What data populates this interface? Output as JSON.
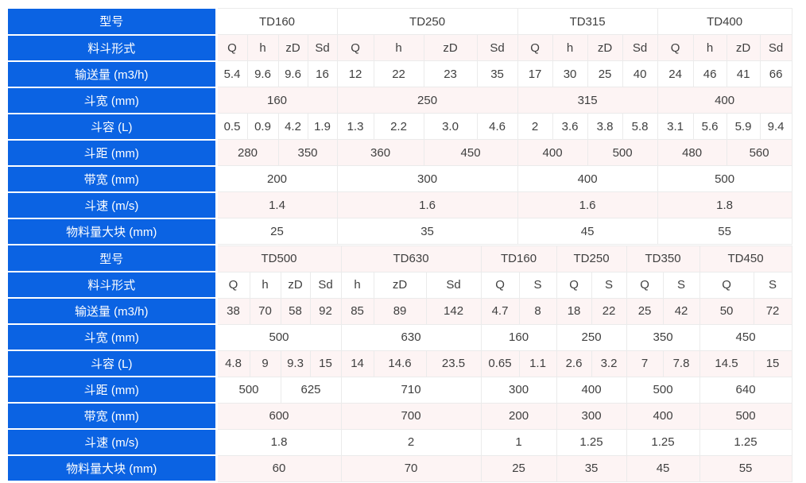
{
  "colors": {
    "header_blue": "#0b63e3",
    "header_text": "#ffffff",
    "row_pink": "#fdf4f4",
    "row_white": "#ffffff",
    "border_gray": "#ebebeb",
    "data_text": "#3f3f3f"
  },
  "table": {
    "sections": [
      {
        "rows": [
          {
            "label": "型号",
            "cells": [
              {
                "t": "TD160",
                "s": 4
              },
              {
                "t": "TD250",
                "s": 4
              },
              {
                "t": "TD315",
                "s": 4
              },
              {
                "t": "TD400",
                "s": 4
              }
            ]
          },
          {
            "label": "料斗形式",
            "cells": [
              {
                "t": "Q"
              },
              {
                "t": "h"
              },
              {
                "t": "zD"
              },
              {
                "t": "Sd"
              },
              {
                "t": "Q"
              },
              {
                "t": "h"
              },
              {
                "t": "zD"
              },
              {
                "t": "Sd"
              },
              {
                "t": "Q"
              },
              {
                "t": "h"
              },
              {
                "t": "zD"
              },
              {
                "t": "Sd"
              },
              {
                "t": "Q"
              },
              {
                "t": "h"
              },
              {
                "t": "zD"
              },
              {
                "t": "Sd"
              }
            ]
          },
          {
            "label": "输送量 (m3/h)",
            "cells": [
              {
                "t": "5.4"
              },
              {
                "t": "9.6"
              },
              {
                "t": "9.6"
              },
              {
                "t": "16"
              },
              {
                "t": "12"
              },
              {
                "t": "22"
              },
              {
                "t": "23"
              },
              {
                "t": "35"
              },
              {
                "t": "17"
              },
              {
                "t": "30"
              },
              {
                "t": "25"
              },
              {
                "t": "40"
              },
              {
                "t": "24"
              },
              {
                "t": "46"
              },
              {
                "t": "41"
              },
              {
                "t": "66"
              }
            ]
          },
          {
            "label": "斗宽 (mm)",
            "cells": [
              {
                "t": "160",
                "s": 4
              },
              {
                "t": "250",
                "s": 4
              },
              {
                "t": "315",
                "s": 4
              },
              {
                "t": "400",
                "s": 4
              }
            ]
          },
          {
            "label": "斗容 (L)",
            "cells": [
              {
                "t": "0.5"
              },
              {
                "t": "0.9"
              },
              {
                "t": "4.2"
              },
              {
                "t": "1.9"
              },
              {
                "t": "1.3"
              },
              {
                "t": "2.2"
              },
              {
                "t": "3.0"
              },
              {
                "t": "4.6"
              },
              {
                "t": "2"
              },
              {
                "t": "3.6"
              },
              {
                "t": "3.8"
              },
              {
                "t": "5.8"
              },
              {
                "t": "3.1"
              },
              {
                "t": "5.6"
              },
              {
                "t": "5.9"
              },
              {
                "t": "9.4"
              }
            ]
          },
          {
            "label": "斗距 (mm)",
            "cells": [
              {
                "t": "280",
                "s": 2
              },
              {
                "t": "350",
                "s": 2
              },
              {
                "t": "360",
                "s": 2
              },
              {
                "t": "450",
                "s": 2
              },
              {
                "t": "400",
                "s": 2
              },
              {
                "t": "500",
                "s": 2
              },
              {
                "t": "480",
                "s": 2
              },
              {
                "t": "560",
                "s": 2
              }
            ]
          },
          {
            "label": "带宽 (mm)",
            "cells": [
              {
                "t": "200",
                "s": 4
              },
              {
                "t": "300",
                "s": 4
              },
              {
                "t": "400",
                "s": 4
              },
              {
                "t": "500",
                "s": 4
              }
            ]
          },
          {
            "label": "斗速 (m/s)",
            "cells": [
              {
                "t": "1.4",
                "s": 4
              },
              {
                "t": "1.6",
                "s": 4
              },
              {
                "t": "1.6",
                "s": 4
              },
              {
                "t": "1.8",
                "s": 4
              }
            ]
          },
          {
            "label": "物料量大块 (mm)",
            "cells": [
              {
                "t": "25",
                "s": 4
              },
              {
                "t": "35",
                "s": 4
              },
              {
                "t": "45",
                "s": 4
              },
              {
                "t": "55",
                "s": 4
              }
            ]
          }
        ]
      },
      {
        "rows": [
          {
            "label": "型号",
            "cells": [
              {
                "t": "TD500",
                "s": 4
              },
              {
                "t": "TD630",
                "s": 3
              },
              {
                "t": "TD160",
                "s": 2
              },
              {
                "t": "TD250",
                "s": 2
              },
              {
                "t": "TD350",
                "s": 2
              },
              {
                "t": "TD450",
                "s": 2
              }
            ]
          },
          {
            "label": "料斗形式",
            "cells": [
              {
                "t": "Q"
              },
              {
                "t": "h"
              },
              {
                "t": "zD"
              },
              {
                "t": "Sd"
              },
              {
                "t": "h"
              },
              {
                "t": "zD"
              },
              {
                "t": "Sd"
              },
              {
                "t": "Q"
              },
              {
                "t": "S"
              },
              {
                "t": "Q"
              },
              {
                "t": "S"
              },
              {
                "t": "Q"
              },
              {
                "t": "S"
              },
              {
                "t": "Q"
              },
              {
                "t": "S"
              }
            ]
          },
          {
            "label": "输送量 (m3/h)",
            "cells": [
              {
                "t": "38"
              },
              {
                "t": "70"
              },
              {
                "t": "58"
              },
              {
                "t": "92"
              },
              {
                "t": "85"
              },
              {
                "t": "89"
              },
              {
                "t": "142"
              },
              {
                "t": "4.7"
              },
              {
                "t": "8"
              },
              {
                "t": "18"
              },
              {
                "t": "22"
              },
              {
                "t": "25"
              },
              {
                "t": "42"
              },
              {
                "t": "50"
              },
              {
                "t": "72"
              }
            ]
          },
          {
            "label": "斗宽 (mm)",
            "cells": [
              {
                "t": "500",
                "s": 4
              },
              {
                "t": "630",
                "s": 3
              },
              {
                "t": "160",
                "s": 2
              },
              {
                "t": "250",
                "s": 2
              },
              {
                "t": "350",
                "s": 2
              },
              {
                "t": "450",
                "s": 2
              }
            ]
          },
          {
            "label": "斗容 (L)",
            "cells": [
              {
                "t": "4.8"
              },
              {
                "t": "9"
              },
              {
                "t": "9.3"
              },
              {
                "t": "15"
              },
              {
                "t": "14"
              },
              {
                "t": "14.6"
              },
              {
                "t": "23.5"
              },
              {
                "t": "0.65"
              },
              {
                "t": "1.1"
              },
              {
                "t": "2.6"
              },
              {
                "t": "3.2"
              },
              {
                "t": "7"
              },
              {
                "t": "7.8"
              },
              {
                "t": "14.5"
              },
              {
                "t": "15"
              }
            ]
          },
          {
            "label": "斗距 (mm)",
            "cells": [
              {
                "t": "500",
                "s": 2
              },
              {
                "t": "625",
                "s": 2
              },
              {
                "t": "710",
                "s": 3
              },
              {
                "t": "300",
                "s": 2
              },
              {
                "t": "400",
                "s": 2
              },
              {
                "t": "500",
                "s": 2
              },
              {
                "t": "640",
                "s": 2
              }
            ]
          },
          {
            "label": "带宽 (mm)",
            "cells": [
              {
                "t": "600",
                "s": 4
              },
              {
                "t": "700",
                "s": 3
              },
              {
                "t": "200",
                "s": 2
              },
              {
                "t": "300",
                "s": 2
              },
              {
                "t": "400",
                "s": 2
              },
              {
                "t": "500",
                "s": 2
              }
            ]
          },
          {
            "label": "斗速 (m/s)",
            "cells": [
              {
                "t": "1.8",
                "s": 4
              },
              {
                "t": "2",
                "s": 3
              },
              {
                "t": "1",
                "s": 2
              },
              {
                "t": "1.25",
                "s": 2
              },
              {
                "t": "1.25",
                "s": 2
              },
              {
                "t": "1.25",
                "s": 2
              }
            ]
          },
          {
            "label": "物料量大块 (mm)",
            "cells": [
              {
                "t": "60",
                "s": 4
              },
              {
                "t": "70",
                "s": 3
              },
              {
                "t": "25",
                "s": 2
              },
              {
                "t": "35",
                "s": 2
              },
              {
                "t": "45",
                "s": 2
              },
              {
                "t": "55",
                "s": 2
              }
            ]
          }
        ]
      }
    ]
  }
}
